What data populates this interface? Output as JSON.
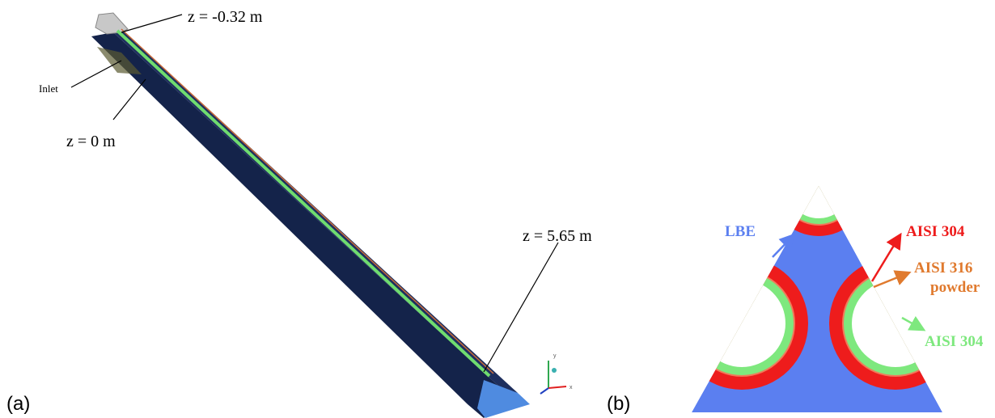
{
  "panel_a": {
    "label": "(a)",
    "annotations": [
      "z = -0.32 m",
      "Inlet",
      "z = 0 m",
      "z = 5.65 m"
    ],
    "triad_axes": [
      "y",
      "x"
    ]
  },
  "panel_b": {
    "label": "(b)",
    "materials": [
      "LBE",
      "AISI 304",
      "AISI 316",
      "powder",
      "AISI 304"
    ]
  }
}
